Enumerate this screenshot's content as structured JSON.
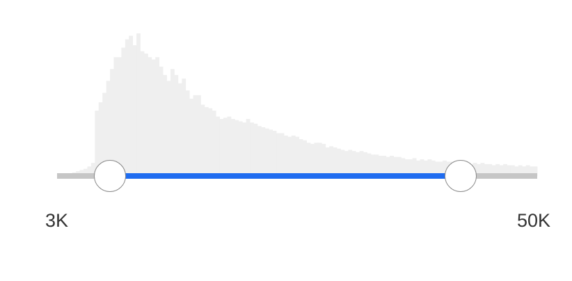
{
  "range_slider": {
    "min_label": "3K",
    "max_label": "50K",
    "selected_from_fraction": 0.11,
    "selected_to_fraction": 0.84
  },
  "colors": {
    "accent": "#1f6cf0",
    "track": "#c6c6c6",
    "histogram": "#efefef",
    "thumb_border": "#8a8a8a",
    "label": "#333333"
  },
  "chart_data": {
    "type": "bar",
    "values": [
      1,
      1,
      1,
      2,
      3,
      4,
      5,
      6,
      8,
      11,
      55,
      62,
      70,
      80,
      90,
      100,
      100,
      108,
      115,
      118,
      110,
      120,
      105,
      103,
      100,
      98,
      100,
      92,
      85,
      80,
      90,
      85,
      78,
      82,
      72,
      65,
      68,
      68,
      60,
      58,
      57,
      55,
      50,
      48,
      49,
      50,
      48,
      47,
      46,
      45,
      48,
      45,
      44,
      42,
      41,
      40,
      39,
      38,
      36,
      36,
      34,
      33,
      34,
      33,
      31,
      30,
      28,
      27,
      28,
      28,
      27,
      24,
      25,
      24,
      23,
      22,
      21,
      22,
      21,
      20,
      21,
      20,
      19,
      18,
      18,
      17,
      17,
      16,
      17,
      16,
      16,
      15,
      14,
      14,
      15,
      13,
      14,
      13,
      14,
      13,
      12,
      12,
      13,
      12,
      12,
      11,
      12,
      11,
      11,
      10,
      11,
      10,
      11,
      10,
      10,
      9,
      10,
      9,
      10,
      9,
      9,
      8,
      9,
      8,
      9,
      8,
      8
    ],
    "ylim": [
      0,
      120
    ]
  }
}
